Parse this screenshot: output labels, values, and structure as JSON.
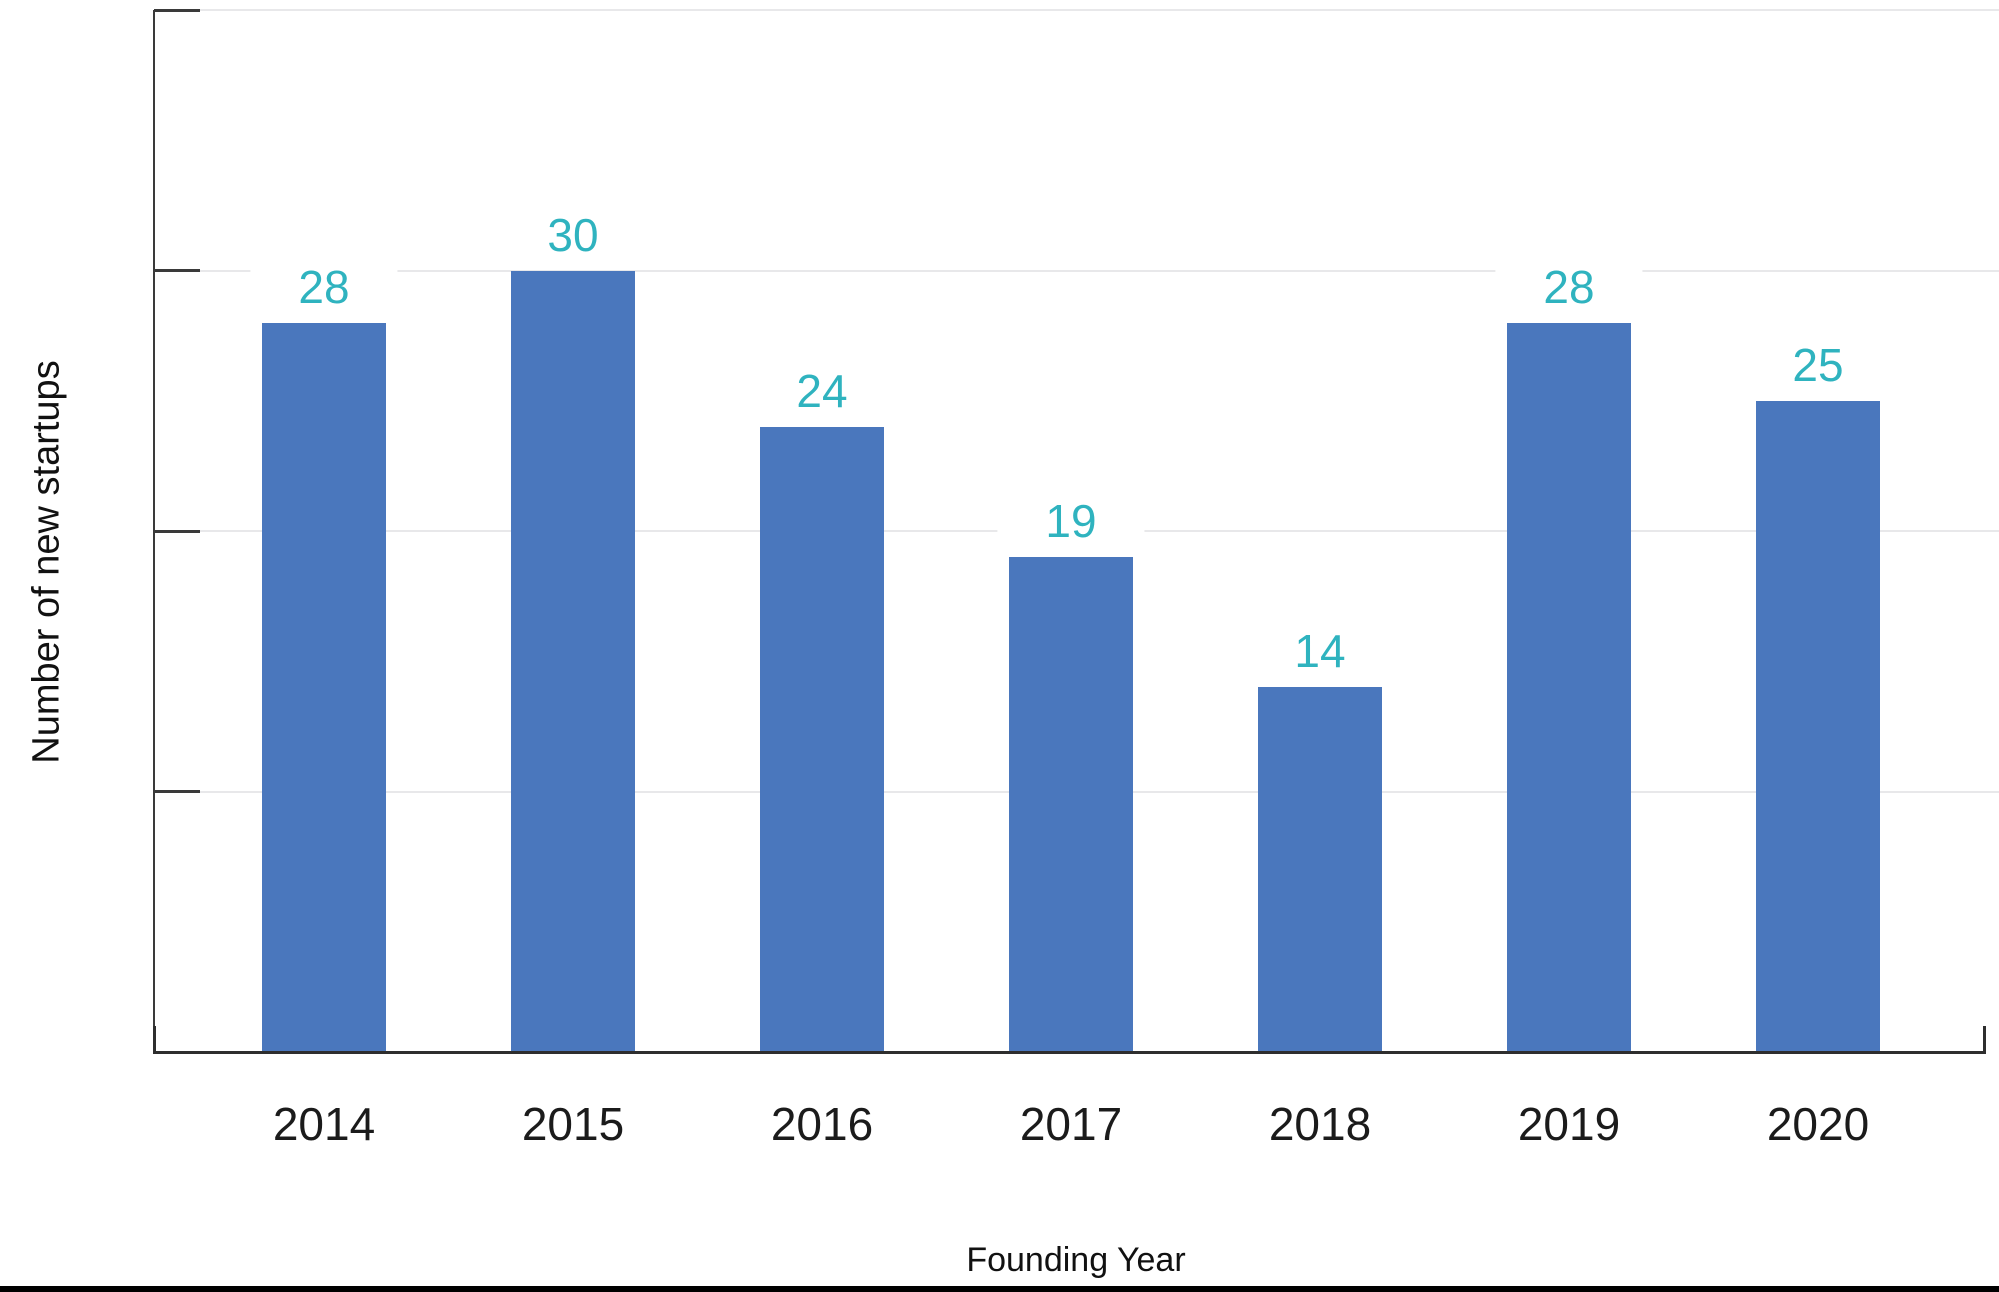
{
  "chart_data": {
    "type": "bar",
    "title": "",
    "categories": [
      "2014",
      "2015",
      "2016",
      "2017",
      "2018",
      "2019",
      "2020"
    ],
    "values": [
      28,
      30,
      24,
      19,
      14,
      28,
      25
    ],
    "xlabel": "Founding Year",
    "ylabel": "Number of new startups",
    "ylim": [
      0,
      40
    ],
    "yticks": [
      0,
      10,
      20,
      30,
      40
    ],
    "ytick_labels_visible": false,
    "grid": true,
    "legend": "none",
    "bar_color": "#4a77bd",
    "value_label_color": "#2fb3bf",
    "axis_color": "#3a3a3a",
    "gridline_color": "#e8e8ea"
  }
}
